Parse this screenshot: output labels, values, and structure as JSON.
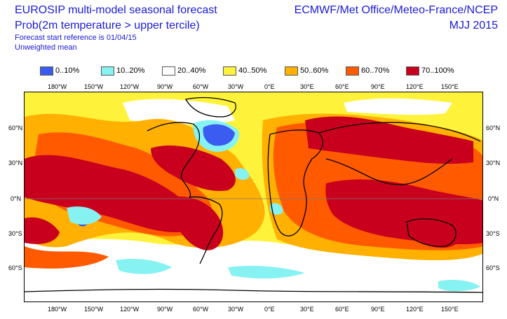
{
  "header": {
    "title": "EUROSIP multi-model seasonal forecast",
    "subtitle": "Prob(2m temperature > upper tercile)",
    "start_ref": "Forecast start reference is 01/04/15",
    "mean_type": "Unweighted mean",
    "producers": "ECMWF/Met Office/Meteo-France/NCEP",
    "season": "MJJ 2015"
  },
  "legend": [
    {
      "label": "0..10%",
      "color": "#3a5cf0"
    },
    {
      "label": "10..20%",
      "color": "#86f2f2"
    },
    {
      "label": "20..40%",
      "color": "#ffffff"
    },
    {
      "label": "40..50%",
      "color": "#fff23a"
    },
    {
      "label": "50..60%",
      "color": "#ffb000"
    },
    {
      "label": "60..70%",
      "color": "#ff5a00"
    },
    {
      "label": "70..100%",
      "color": "#c8001e"
    }
  ],
  "lon_labels": [
    "180°W",
    "150°W",
    "120°W",
    "90°W",
    "60°W",
    "30°W",
    "0°E",
    "30°E",
    "60°E",
    "90°E",
    "120°E",
    "150°E"
  ],
  "lat_labels": [
    "60°N",
    "30°N",
    "0°N",
    "30°S",
    "60°S"
  ]
}
